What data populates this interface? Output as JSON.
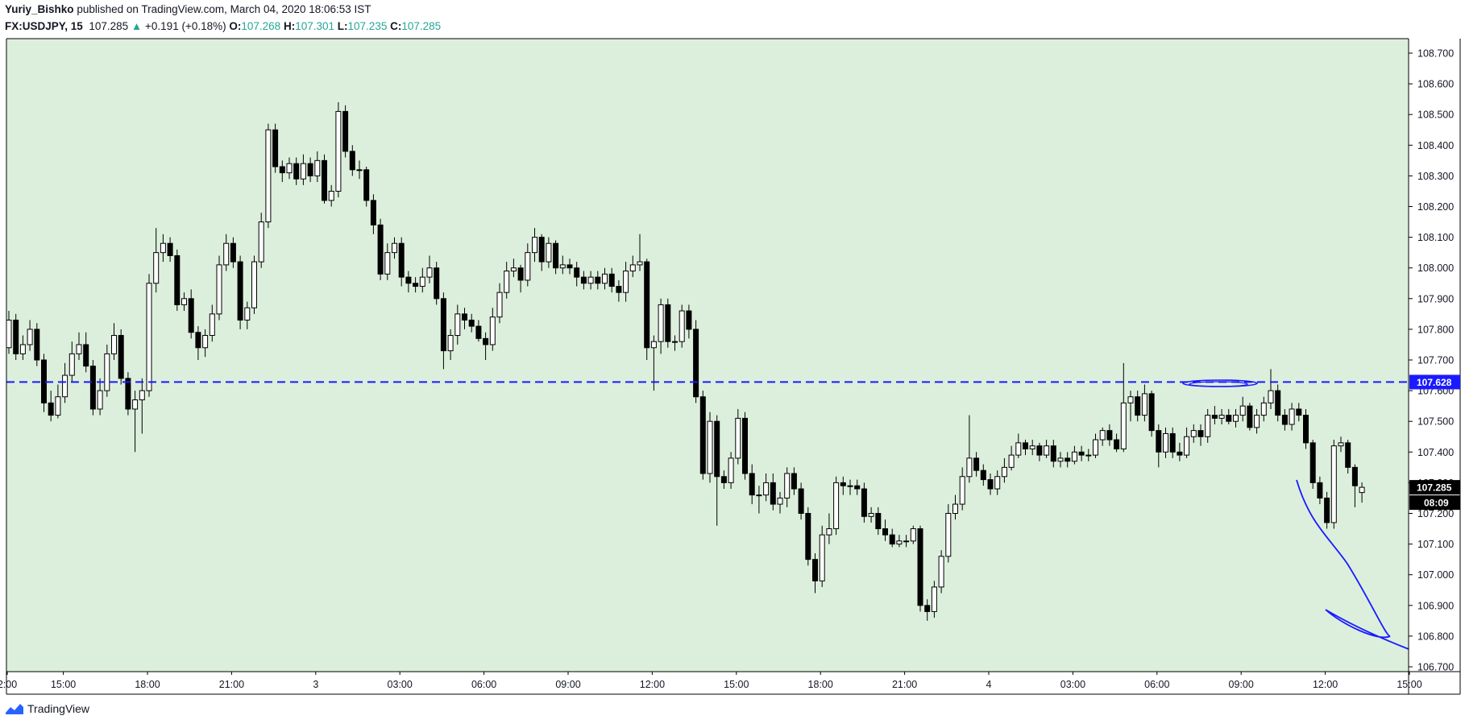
{
  "header": {
    "author": "Yuriy_Bishko",
    "published": "published on TradingView.com, March 04, 2020 18:06:53 IST",
    "symbol": "FX:USDJPY, 15",
    "last": "107.285",
    "change": "+0.191 (+0.18%)",
    "o_label": "O:",
    "o": "107.268",
    "h_label": "H:",
    "h": "107.301",
    "l_label": "L:",
    "l": "107.235",
    "c_label": "C:",
    "c": "107.285"
  },
  "footer": {
    "brand": "TradingView"
  },
  "colors": {
    "background": "#dcefdc",
    "candle_up_fill": "#ffffff",
    "candle_down_fill": "#000000",
    "level_line": "#1a1aff",
    "drawing": "#1a1aff",
    "up_text": "#26a69a"
  },
  "chart_data": {
    "type": "candlestick",
    "title": "",
    "xlabel": "",
    "ylabel": "",
    "ylim": [
      106.7,
      108.7
    ],
    "yticks": [
      "108.700",
      "108.600",
      "108.500",
      "108.400",
      "108.300",
      "108.200",
      "108.100",
      "108.000",
      "107.900",
      "107.800",
      "107.700",
      "107.600",
      "107.500",
      "107.400",
      "107.300",
      "107.200",
      "107.100",
      "107.000",
      "106.900",
      "106.800",
      "106.700"
    ],
    "xticks": [
      {
        "label": "2:00",
        "i": 0
      },
      {
        "label": "15:00",
        "i": 8
      },
      {
        "label": "18:00",
        "i": 20
      },
      {
        "label": "21:00",
        "i": 32
      },
      {
        "label": "3",
        "i": 44
      },
      {
        "label": "03:00",
        "i": 56
      },
      {
        "label": "06:00",
        "i": 68
      },
      {
        "label": "09:00",
        "i": 80
      },
      {
        "label": "12:00",
        "i": 92
      },
      {
        "label": "15:00",
        "i": 104
      },
      {
        "label": "18:00",
        "i": 116
      },
      {
        "label": "21:00",
        "i": 128
      },
      {
        "label": "4",
        "i": 140
      },
      {
        "label": "03:00",
        "i": 152
      },
      {
        "label": "06:00",
        "i": 164
      },
      {
        "label": "09:00",
        "i": 176
      },
      {
        "label": "12:00",
        "i": 188
      },
      {
        "label": "15:00",
        "i": 200
      },
      {
        "label": "18:00",
        "i": 212
      },
      {
        "label": "21:00",
        "i": 224
      }
    ],
    "last_price_label": "107.285",
    "countdown_label": "08:09",
    "level": {
      "value": 107.628,
      "label": "107.628",
      "style": "dashed"
    },
    "grid": false,
    "close": [
      107.83,
      107.72,
      107.75,
      107.8,
      107.7,
      107.56,
      107.52,
      107.58,
      107.65,
      107.72,
      107.75,
      107.68,
      107.54,
      107.6,
      107.72,
      107.78,
      107.64,
      107.54,
      107.57,
      107.6,
      107.95,
      108.05,
      108.08,
      108.04,
      107.88,
      107.9,
      107.79,
      107.74,
      107.78,
      107.85,
      108.01,
      108.08,
      108.02,
      107.83,
      107.87,
      108.02,
      108.15,
      108.45,
      108.33,
      108.31,
      108.34,
      108.29,
      108.34,
      108.3,
      108.35,
      108.22,
      108.25,
      108.51,
      108.38,
      108.32,
      108.32,
      108.22,
      108.14,
      107.98,
      108.05,
      108.08,
      107.97,
      107.95,
      107.94,
      107.97,
      108.0,
      107.9,
      107.73,
      107.78,
      107.85,
      107.83,
      107.81,
      107.77,
      107.75,
      107.84,
      107.92,
      107.99,
      108.0,
      107.96,
      108.05,
      108.1,
      108.02,
      108.08,
      108.0,
      108.01,
      108.0,
      107.97,
      107.95,
      107.97,
      107.95,
      107.98,
      107.94,
      107.92,
      107.99,
      108.01,
      108.02,
      107.74,
      107.76,
      107.88,
      107.76,
      107.76,
      107.86,
      107.8,
      107.58,
      107.33,
      107.5,
      107.32,
      107.3,
      107.38,
      107.51,
      107.33,
      107.26,
      107.26,
      107.3,
      107.23,
      107.25,
      107.33,
      107.28,
      107.2,
      107.05,
      106.98,
      107.13,
      107.15,
      107.3,
      107.29,
      107.29,
      107.28,
      107.19,
      107.2,
      107.15,
      107.13,
      107.1,
      107.11,
      107.11,
      107.15,
      106.9,
      106.88,
      106.96,
      107.06,
      107.2,
      107.23,
      107.32,
      107.38,
      107.34,
      107.31,
      107.28,
      107.32,
      107.35,
      107.39,
      107.43,
      107.41,
      107.42,
      107.39,
      107.42,
      107.37,
      107.38,
      107.37,
      107.4,
      107.39,
      107.39,
      107.44,
      107.47,
      107.44,
      107.41,
      107.56,
      107.58,
      107.52,
      107.59,
      107.47,
      107.4,
      107.46,
      107.4,
      107.39,
      107.45,
      107.47,
      107.45,
      107.52,
      107.51,
      107.52,
      107.5,
      107.52,
      107.55,
      107.48,
      107.52,
      107.56,
      107.6,
      107.52,
      107.49,
      107.54,
      107.52,
      107.43,
      107.3,
      107.25,
      107.17,
      107.42,
      107.43,
      107.35,
      107.29,
      107.285
    ],
    "open": [
      107.74,
      107.83,
      107.72,
      107.75,
      107.8,
      107.7,
      107.56,
      107.52,
      107.58,
      107.65,
      107.72,
      107.75,
      107.68,
      107.54,
      107.6,
      107.72,
      107.78,
      107.64,
      107.54,
      107.57,
      107.6,
      107.95,
      108.05,
      108.08,
      108.04,
      107.88,
      107.9,
      107.79,
      107.74,
      107.78,
      107.85,
      108.01,
      108.08,
      108.02,
      107.83,
      107.87,
      108.02,
      108.15,
      108.45,
      108.33,
      108.31,
      108.34,
      108.29,
      108.34,
      108.3,
      108.35,
      108.22,
      108.25,
      108.51,
      108.38,
      108.32,
      108.32,
      108.22,
      108.14,
      107.98,
      108.05,
      108.08,
      107.97,
      107.95,
      107.94,
      107.97,
      108.0,
      107.9,
      107.73,
      107.78,
      107.85,
      107.83,
      107.81,
      107.77,
      107.75,
      107.84,
      107.92,
      107.99,
      108.0,
      107.96,
      108.05,
      108.1,
      108.02,
      108.08,
      108.0,
      108.01,
      108.0,
      107.97,
      107.95,
      107.97,
      107.95,
      107.98,
      107.94,
      107.92,
      107.99,
      108.01,
      108.02,
      107.74,
      107.76,
      107.88,
      107.76,
      107.76,
      107.86,
      107.8,
      107.58,
      107.33,
      107.5,
      107.32,
      107.3,
      107.38,
      107.51,
      107.33,
      107.26,
      107.26,
      107.3,
      107.23,
      107.25,
      107.33,
      107.28,
      107.2,
      107.05,
      106.98,
      107.13,
      107.15,
      107.3,
      107.29,
      107.29,
      107.28,
      107.19,
      107.2,
      107.15,
      107.13,
      107.1,
      107.11,
      107.11,
      107.15,
      106.9,
      106.88,
      106.96,
      107.06,
      107.2,
      107.23,
      107.32,
      107.38,
      107.34,
      107.31,
      107.28,
      107.32,
      107.35,
      107.39,
      107.43,
      107.41,
      107.42,
      107.39,
      107.42,
      107.37,
      107.38,
      107.37,
      107.4,
      107.39,
      107.39,
      107.44,
      107.47,
      107.44,
      107.41,
      107.56,
      107.58,
      107.52,
      107.59,
      107.47,
      107.4,
      107.46,
      107.4,
      107.39,
      107.45,
      107.47,
      107.45,
      107.52,
      107.51,
      107.52,
      107.5,
      107.52,
      107.55,
      107.48,
      107.52,
      107.56,
      107.6,
      107.52,
      107.49,
      107.54,
      107.52,
      107.43,
      107.3,
      107.25,
      107.17,
      107.42,
      107.43,
      107.35,
      107.268
    ],
    "high": [
      107.86,
      107.85,
      107.78,
      107.83,
      107.82,
      107.72,
      107.6,
      107.62,
      107.69,
      107.76,
      107.79,
      107.79,
      107.7,
      107.64,
      107.75,
      107.82,
      107.8,
      107.66,
      107.6,
      107.64,
      107.98,
      108.13,
      108.11,
      108.1,
      108.06,
      107.92,
      107.93,
      107.81,
      107.8,
      107.88,
      108.04,
      108.11,
      108.1,
      108.04,
      107.89,
      108.04,
      108.18,
      108.47,
      108.47,
      108.35,
      108.36,
      108.36,
      108.37,
      108.36,
      108.38,
      108.37,
      108.27,
      108.54,
      108.53,
      108.4,
      108.35,
      108.33,
      108.24,
      108.16,
      108.08,
      108.1,
      108.1,
      107.99,
      107.97,
      108.0,
      108.04,
      108.02,
      107.92,
      107.8,
      107.88,
      107.87,
      107.85,
      107.83,
      107.79,
      107.87,
      107.95,
      108.02,
      108.03,
      108.01,
      108.08,
      108.13,
      108.11,
      108.1,
      108.09,
      108.04,
      108.03,
      108.02,
      107.99,
      107.99,
      107.99,
      108.0,
      108.0,
      107.96,
      108.02,
      108.04,
      108.11,
      108.03,
      107.78,
      107.9,
      107.9,
      107.78,
      107.88,
      107.88,
      107.83,
      107.6,
      107.53,
      107.52,
      107.34,
      107.4,
      107.54,
      107.53,
      107.36,
      107.29,
      107.33,
      107.33,
      107.27,
      107.35,
      107.35,
      107.3,
      107.22,
      107.07,
      107.16,
      107.2,
      107.32,
      107.32,
      107.31,
      107.31,
      107.3,
      107.22,
      107.22,
      107.18,
      107.15,
      107.13,
      107.13,
      107.16,
      107.16,
      106.92,
      106.98,
      107.08,
      107.23,
      107.26,
      107.35,
      107.52,
      107.4,
      107.36,
      107.33,
      107.34,
      107.38,
      107.42,
      107.46,
      107.44,
      107.44,
      107.43,
      107.44,
      107.44,
      107.4,
      107.4,
      107.42,
      107.42,
      107.41,
      107.46,
      107.48,
      107.49,
      107.46,
      107.69,
      107.6,
      107.6,
      107.62,
      107.6,
      107.49,
      107.48,
      107.48,
      107.43,
      107.48,
      107.49,
      107.49,
      107.54,
      107.55,
      107.54,
      107.54,
      107.54,
      107.58,
      107.56,
      107.54,
      107.58,
      107.67,
      107.62,
      107.54,
      107.56,
      107.56,
      107.54,
      107.44,
      107.32,
      107.27,
      107.44,
      107.45,
      107.44,
      107.36,
      107.301
    ],
    "low": [
      107.72,
      107.7,
      107.7,
      107.73,
      107.68,
      107.53,
      107.5,
      107.51,
      107.56,
      107.63,
      107.7,
      107.66,
      107.52,
      107.52,
      107.58,
      107.7,
      107.62,
      107.52,
      107.4,
      107.46,
      107.58,
      107.92,
      108.02,
      108.02,
      107.86,
      107.86,
      107.77,
      107.7,
      107.71,
      107.76,
      107.83,
      107.99,
      108.0,
      107.8,
      107.8,
      107.85,
      108.0,
      108.13,
      108.31,
      108.28,
      108.29,
      108.27,
      108.27,
      108.28,
      108.28,
      108.21,
      108.2,
      108.23,
      108.36,
      108.3,
      108.29,
      108.2,
      108.11,
      107.96,
      107.96,
      108.03,
      107.94,
      107.92,
      107.92,
      107.92,
      107.95,
      107.88,
      107.67,
      107.7,
      107.75,
      107.8,
      107.79,
      107.76,
      107.7,
      107.73,
      107.82,
      107.9,
      107.97,
      107.92,
      107.94,
      108.02,
      107.99,
      108.0,
      107.98,
      107.98,
      107.98,
      107.94,
      107.93,
      107.93,
      107.93,
      107.93,
      107.92,
      107.89,
      107.89,
      107.97,
      107.99,
      107.7,
      107.6,
      107.72,
      107.74,
      107.73,
      107.74,
      107.77,
      107.56,
      107.31,
      107.3,
      107.16,
      107.28,
      107.28,
      107.36,
      107.31,
      107.23,
      107.2,
      107.24,
      107.21,
      107.2,
      107.22,
      107.26,
      107.18,
      107.03,
      106.94,
      106.96,
      107.1,
      107.13,
      107.26,
      107.26,
      107.26,
      107.17,
      107.17,
      107.13,
      107.11,
      107.09,
      107.09,
      107.09,
      107.1,
      106.88,
      106.85,
      106.86,
      106.94,
      107.04,
      107.18,
      107.21,
      107.3,
      107.32,
      107.29,
      107.26,
      107.26,
      107.3,
      107.34,
      107.38,
      107.39,
      107.39,
      107.37,
      107.38,
      107.35,
      107.35,
      107.35,
      107.36,
      107.37,
      107.37,
      107.38,
      107.42,
      107.42,
      107.4,
      107.4,
      107.5,
      107.5,
      107.5,
      107.45,
      107.35,
      107.38,
      107.38,
      107.37,
      107.38,
      107.43,
      107.42,
      107.43,
      107.49,
      107.49,
      107.49,
      107.48,
      107.5,
      107.47,
      107.46,
      107.5,
      107.54,
      107.5,
      107.47,
      107.47,
      107.5,
      107.41,
      107.28,
      107.23,
      107.15,
      107.15,
      107.4,
      107.33,
      107.22,
      107.235
    ]
  }
}
